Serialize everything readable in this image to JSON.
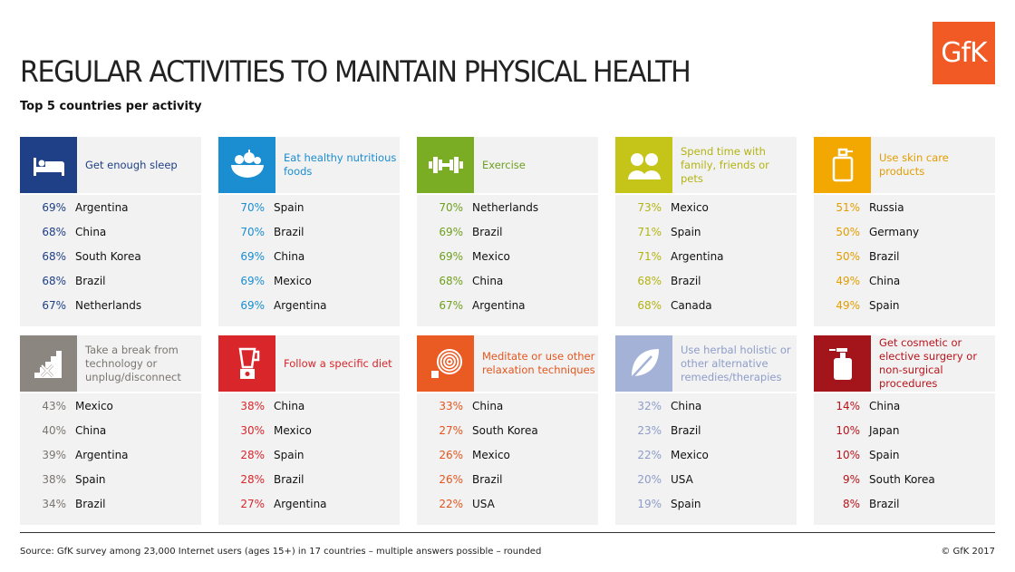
{
  "logo_text": "GfK",
  "title": "REGULAR ACTIVITIES TO MAINTAIN PHYSICAL HEALTH",
  "subtitle": "Top 5 countries per activity",
  "activities": [
    {
      "icon": "bed-icon",
      "label": "Get enough sleep",
      "color": "#1f3f86",
      "label_color": "#1f3f86",
      "rows": [
        {
          "pct": "69%",
          "country": "Argentina"
        },
        {
          "pct": "68%",
          "country": "China"
        },
        {
          "pct": "68%",
          "country": "South Korea"
        },
        {
          "pct": "68%",
          "country": "Brazil"
        },
        {
          "pct": "67%",
          "country": "Netherlands"
        }
      ]
    },
    {
      "icon": "food-bowl-icon",
      "label": "Eat healthy nutritious foods",
      "color": "#1b8ed1",
      "label_color": "#1b8ed1",
      "rows": [
        {
          "pct": "70%",
          "country": "Spain"
        },
        {
          "pct": "70%",
          "country": "Brazil"
        },
        {
          "pct": "69%",
          "country": "China"
        },
        {
          "pct": "69%",
          "country": "Mexico"
        },
        {
          "pct": "69%",
          "country": "Argentina"
        }
      ]
    },
    {
      "icon": "dumbbell-icon",
      "label": "Exercise",
      "color": "#7bad24",
      "label_color": "#6f9f1e",
      "rows": [
        {
          "pct": "70%",
          "country": "Netherlands"
        },
        {
          "pct": "69%",
          "country": "Brazil"
        },
        {
          "pct": "69%",
          "country": "Mexico"
        },
        {
          "pct": "68%",
          "country": "China"
        },
        {
          "pct": "67%",
          "country": "Argentina"
        }
      ]
    },
    {
      "icon": "family-icon",
      "label": "Spend time with family, friends or pets",
      "color": "#c5c418",
      "label_color": "#b3b314",
      "rows": [
        {
          "pct": "73%",
          "country": "Mexico"
        },
        {
          "pct": "71%",
          "country": "Spain"
        },
        {
          "pct": "71%",
          "country": "Argentina"
        },
        {
          "pct": "68%",
          "country": "Brazil"
        },
        {
          "pct": "68%",
          "country": "Canada"
        }
      ]
    },
    {
      "icon": "skin-care-bottle-icon",
      "label": "Use skin care products",
      "color": "#f2a800",
      "label_color": "#e39d00",
      "rows": [
        {
          "pct": "51%",
          "country": "Russia"
        },
        {
          "pct": "50%",
          "country": "Germany"
        },
        {
          "pct": "50%",
          "country": "Brazil"
        },
        {
          "pct": "49%",
          "country": "China"
        },
        {
          "pct": "49%",
          "country": "Spain"
        }
      ]
    },
    {
      "icon": "unplug-stairs-icon",
      "label": "Take a break from technology or unplug/disconnect",
      "color": "#8c8680",
      "label_color": "#7a7570",
      "rows": [
        {
          "pct": "43%",
          "country": "Mexico"
        },
        {
          "pct": "40%",
          "country": "China"
        },
        {
          "pct": "39%",
          "country": "Argentina"
        },
        {
          "pct": "38%",
          "country": "Spain"
        },
        {
          "pct": "34%",
          "country": "Brazil"
        }
      ]
    },
    {
      "icon": "blender-icon",
      "label": "Follow a specific diet",
      "color": "#d9262b",
      "label_color": "#d9262b",
      "rows": [
        {
          "pct": "38%",
          "country": "China"
        },
        {
          "pct": "30%",
          "country": "Mexico"
        },
        {
          "pct": "28%",
          "country": "Spain"
        },
        {
          "pct": "28%",
          "country": "Brazil"
        },
        {
          "pct": "27%",
          "country": "Argentina"
        }
      ]
    },
    {
      "icon": "spiral-icon",
      "label": "Meditate or use other relaxation techniques",
      "color": "#ea5b24",
      "label_color": "#e3561f",
      "rows": [
        {
          "pct": "33%",
          "country": "China"
        },
        {
          "pct": "27%",
          "country": "South Korea"
        },
        {
          "pct": "26%",
          "country": "Mexico"
        },
        {
          "pct": "26%",
          "country": "Brazil"
        },
        {
          "pct": "22%",
          "country": "USA"
        }
      ]
    },
    {
      "icon": "leaf-icon",
      "label": "Use herbal holistic or other alternative remedies/therapies",
      "color": "#a4b2d8",
      "label_color": "#8e9dc9",
      "rows": [
        {
          "pct": "32%",
          "country": "China"
        },
        {
          "pct": "23%",
          "country": "Brazil"
        },
        {
          "pct": "22%",
          "country": "Mexico"
        },
        {
          "pct": "20%",
          "country": "USA"
        },
        {
          "pct": "19%",
          "country": "Spain"
        }
      ]
    },
    {
      "icon": "cosmetic-bottle-icon",
      "label": "Get cosmetic or elective surgery or non-surgical procedures",
      "color": "#a3141b",
      "label_color": "#b8141c",
      "rows": [
        {
          "pct": "14%",
          "country": "China"
        },
        {
          "pct": "10%",
          "country": "Japan"
        },
        {
          "pct": "10%",
          "country": "Spain"
        },
        {
          "pct": "9%",
          "country": "South Korea"
        },
        {
          "pct": "8%",
          "country": "Brazil"
        }
      ]
    }
  ],
  "footer": {
    "source": "Source: GfK survey among 23,000 Internet users (ages 15+) in 17 countries – multiple answers possible – rounded",
    "copyright": "© GfK 2017"
  }
}
